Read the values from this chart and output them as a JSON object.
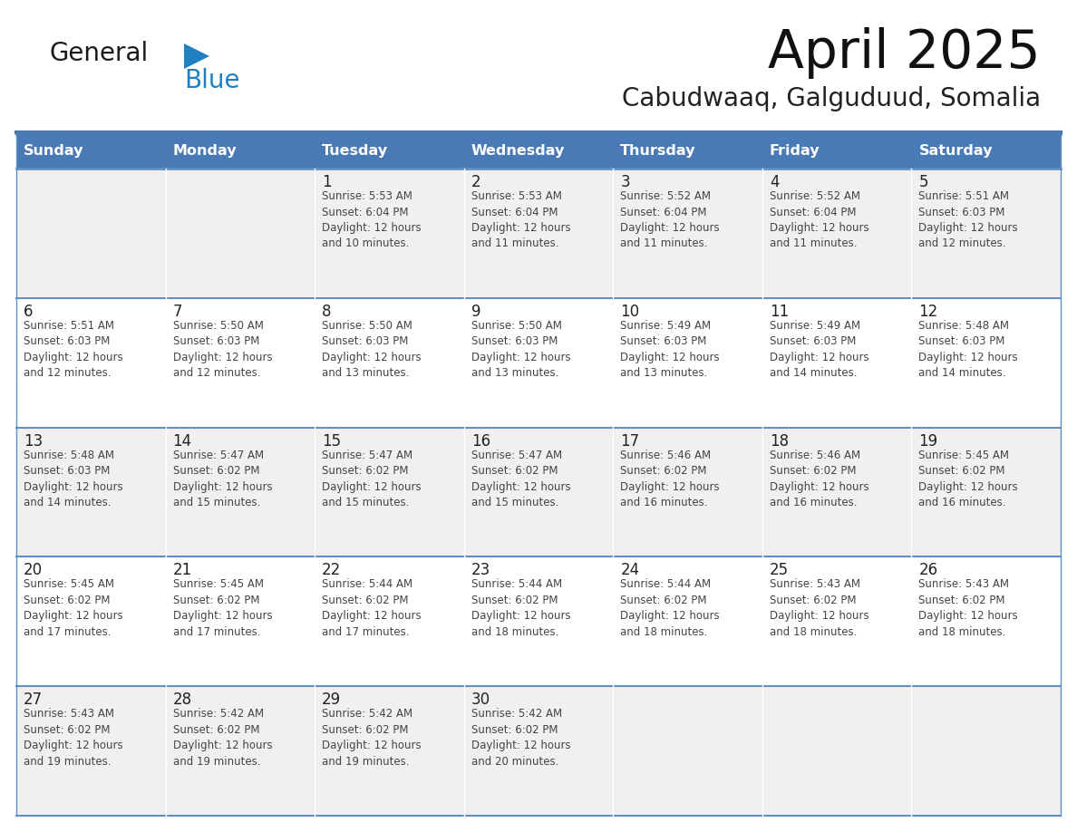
{
  "title": "April 2025",
  "subtitle": "Cabudwaaq, Galguduud, Somalia",
  "days_of_week": [
    "Sunday",
    "Monday",
    "Tuesday",
    "Wednesday",
    "Thursday",
    "Friday",
    "Saturday"
  ],
  "header_bg_color": "#4a7ab5",
  "header_text_color": "#ffffff",
  "row0_bg": "#f0f0f0",
  "row1_bg": "#ffffff",
  "row2_bg": "#f0f0f0",
  "row3_bg": "#ffffff",
  "row4_bg": "#f0f0f0",
  "border_color": "#4a7ab5",
  "sep_line_color": "#6090c0",
  "day_number_color": "#222222",
  "cell_text_color": "#444444",
  "logo_general_color": "#1a1a1a",
  "logo_blue_color": "#2080c0",
  "logo_triangle_color": "#2080c0",
  "calendar_data": [
    [
      {
        "day": "",
        "sunrise": "",
        "sunset": "",
        "daylight_min": ""
      },
      {
        "day": "",
        "sunrise": "",
        "sunset": "",
        "daylight_min": ""
      },
      {
        "day": "1",
        "sunrise": "5:53 AM",
        "sunset": "6:04 PM",
        "daylight_min": "10"
      },
      {
        "day": "2",
        "sunrise": "5:53 AM",
        "sunset": "6:04 PM",
        "daylight_min": "11"
      },
      {
        "day": "3",
        "sunrise": "5:52 AM",
        "sunset": "6:04 PM",
        "daylight_min": "11"
      },
      {
        "day": "4",
        "sunrise": "5:52 AM",
        "sunset": "6:04 PM",
        "daylight_min": "11"
      },
      {
        "day": "5",
        "sunrise": "5:51 AM",
        "sunset": "6:03 PM",
        "daylight_min": "12"
      }
    ],
    [
      {
        "day": "6",
        "sunrise": "5:51 AM",
        "sunset": "6:03 PM",
        "daylight_min": "12"
      },
      {
        "day": "7",
        "sunrise": "5:50 AM",
        "sunset": "6:03 PM",
        "daylight_min": "12"
      },
      {
        "day": "8",
        "sunrise": "5:50 AM",
        "sunset": "6:03 PM",
        "daylight_min": "13"
      },
      {
        "day": "9",
        "sunrise": "5:50 AM",
        "sunset": "6:03 PM",
        "daylight_min": "13"
      },
      {
        "day": "10",
        "sunrise": "5:49 AM",
        "sunset": "6:03 PM",
        "daylight_min": "13"
      },
      {
        "day": "11",
        "sunrise": "5:49 AM",
        "sunset": "6:03 PM",
        "daylight_min": "14"
      },
      {
        "day": "12",
        "sunrise": "5:48 AM",
        "sunset": "6:03 PM",
        "daylight_min": "14"
      }
    ],
    [
      {
        "day": "13",
        "sunrise": "5:48 AM",
        "sunset": "6:03 PM",
        "daylight_min": "14"
      },
      {
        "day": "14",
        "sunrise": "5:47 AM",
        "sunset": "6:02 PM",
        "daylight_min": "15"
      },
      {
        "day": "15",
        "sunrise": "5:47 AM",
        "sunset": "6:02 PM",
        "daylight_min": "15"
      },
      {
        "day": "16",
        "sunrise": "5:47 AM",
        "sunset": "6:02 PM",
        "daylight_min": "15"
      },
      {
        "day": "17",
        "sunrise": "5:46 AM",
        "sunset": "6:02 PM",
        "daylight_min": "16"
      },
      {
        "day": "18",
        "sunrise": "5:46 AM",
        "sunset": "6:02 PM",
        "daylight_min": "16"
      },
      {
        "day": "19",
        "sunrise": "5:45 AM",
        "sunset": "6:02 PM",
        "daylight_min": "16"
      }
    ],
    [
      {
        "day": "20",
        "sunrise": "5:45 AM",
        "sunset": "6:02 PM",
        "daylight_min": "17"
      },
      {
        "day": "21",
        "sunrise": "5:45 AM",
        "sunset": "6:02 PM",
        "daylight_min": "17"
      },
      {
        "day": "22",
        "sunrise": "5:44 AM",
        "sunset": "6:02 PM",
        "daylight_min": "17"
      },
      {
        "day": "23",
        "sunrise": "5:44 AM",
        "sunset": "6:02 PM",
        "daylight_min": "18"
      },
      {
        "day": "24",
        "sunrise": "5:44 AM",
        "sunset": "6:02 PM",
        "daylight_min": "18"
      },
      {
        "day": "25",
        "sunrise": "5:43 AM",
        "sunset": "6:02 PM",
        "daylight_min": "18"
      },
      {
        "day": "26",
        "sunrise": "5:43 AM",
        "sunset": "6:02 PM",
        "daylight_min": "18"
      }
    ],
    [
      {
        "day": "27",
        "sunrise": "5:43 AM",
        "sunset": "6:02 PM",
        "daylight_min": "19"
      },
      {
        "day": "28",
        "sunrise": "5:42 AM",
        "sunset": "6:02 PM",
        "daylight_min": "19"
      },
      {
        "day": "29",
        "sunrise": "5:42 AM",
        "sunset": "6:02 PM",
        "daylight_min": "19"
      },
      {
        "day": "30",
        "sunrise": "5:42 AM",
        "sunset": "6:02 PM",
        "daylight_min": "20"
      },
      {
        "day": "",
        "sunrise": "",
        "sunset": "",
        "daylight_min": ""
      },
      {
        "day": "",
        "sunrise": "",
        "sunset": "",
        "daylight_min": ""
      },
      {
        "day": "",
        "sunrise": "",
        "sunset": "",
        "daylight_min": ""
      }
    ]
  ]
}
